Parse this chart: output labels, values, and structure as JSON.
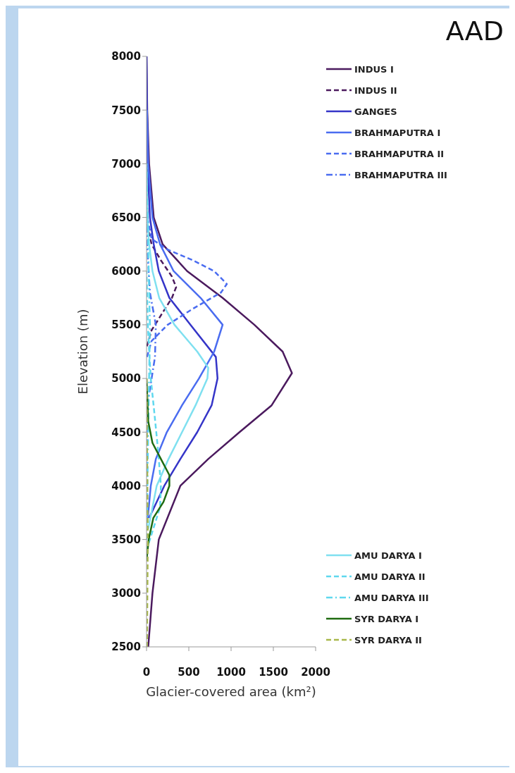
{
  "chart_data": {
    "type": "line",
    "title": "AAD",
    "xlabel": "Glacier-covered area (km²)",
    "ylabel": "Elevation (m)",
    "xlim": [
      0,
      2000
    ],
    "xticks": [
      0,
      500,
      1000,
      1500,
      2000
    ],
    "ylim": [
      2500,
      8000
    ],
    "yticks": [
      2500,
      3000,
      3500,
      4000,
      4500,
      5000,
      5500,
      6000,
      6500,
      7000,
      7500,
      8000
    ],
    "grid": false,
    "legend": "right",
    "marker": "none",
    "series": [
      {
        "name": "INDUS I",
        "color": "#4b1a5e",
        "line_style": "solid",
        "x": [
          20,
          70,
          145,
          400,
          730,
          1100,
          1480,
          1720,
          1610,
          1275,
          900,
          480,
          190,
          85,
          30,
          8,
          0
        ],
        "values": [
          2500,
          3000,
          3500,
          4000,
          4250,
          4500,
          4750,
          5050,
          5250,
          5500,
          5750,
          6000,
          6250,
          6500,
          7000,
          7500,
          8000
        ]
      },
      {
        "name": "INDUS II",
        "color": "#4b1a5e",
        "line_style": "dashed",
        "x": [
          5,
          60,
          180,
          300,
          350,
          300,
          170,
          60,
          15,
          0
        ],
        "values": [
          5300,
          5450,
          5600,
          5750,
          5850,
          5950,
          6100,
          6250,
          6400,
          6800
        ]
      },
      {
        "name": "GANGES",
        "color": "#3535c8",
        "line_style": "solid",
        "x": [
          30,
          210,
          400,
          600,
          770,
          840,
          820,
          520,
          270,
          145,
          85,
          40,
          12,
          0
        ],
        "values": [
          3700,
          4000,
          4250,
          4500,
          4750,
          5000,
          5200,
          5500,
          5750,
          6000,
          6250,
          6500,
          7000,
          8000
        ]
      },
      {
        "name": "BRAHMAPUTRA I",
        "color": "#4a6cf0",
        "line_style": "solid",
        "x": [
          15,
          50,
          110,
          240,
          420,
          620,
          800,
          900,
          640,
          320,
          160,
          70,
          20,
          5
        ],
        "values": [
          3700,
          4000,
          4250,
          4500,
          4750,
          5000,
          5250,
          5500,
          5750,
          6000,
          6250,
          6500,
          7000,
          7500
        ]
      },
      {
        "name": "BRAHMAPUTRA II",
        "color": "#4a6cf0",
        "line_style": "dashed",
        "x": [
          5,
          60,
          250,
          550,
          880,
          950,
          800,
          550,
          250,
          60,
          10,
          0
        ],
        "values": [
          5200,
          5350,
          5500,
          5650,
          5800,
          5880,
          6000,
          6100,
          6200,
          6300,
          6500,
          7000
        ]
      },
      {
        "name": "BRAHMAPUTRA III",
        "color": "#4a6cf0",
        "line_style": "dotted",
        "x": [
          0,
          20,
          100,
          110,
          40,
          10,
          0
        ],
        "values": [
          4000,
          4800,
          5200,
          5500,
          5800,
          6200,
          6600
        ]
      },
      {
        "name": "AMU DARYA I",
        "color": "#7fe0f0",
        "line_style": "solid",
        "x": [
          20,
          120,
          260,
          420,
          580,
          720,
          730,
          600,
          330,
          150,
          70,
          30,
          10,
          0
        ],
        "values": [
          3600,
          4000,
          4250,
          4500,
          4750,
          5000,
          5100,
          5250,
          5500,
          5750,
          6000,
          6250,
          6500,
          7000
        ]
      },
      {
        "name": "AMU DARYA II",
        "color": "#5fd8ee",
        "line_style": "dashed",
        "x": [
          0,
          80,
          160,
          170,
          140,
          90,
          50,
          15,
          0
        ],
        "values": [
          3400,
          3600,
          3800,
          4000,
          4300,
          4700,
          5000,
          5500,
          6000
        ]
      },
      {
        "name": "AMU DARYA III",
        "color": "#5fd8ee",
        "line_style": "dotted",
        "x": [
          0,
          20,
          40,
          20,
          0
        ],
        "values": [
          3500,
          4500,
          5500,
          6200,
          7000
        ]
      },
      {
        "name": "SYR DARYA I",
        "color": "#1f6b10",
        "line_style": "solid",
        "x": [
          0,
          25,
          80,
          200,
          270,
          270,
          170,
          70,
          20,
          0
        ],
        "values": [
          3300,
          3500,
          3700,
          3850,
          4000,
          4100,
          4250,
          4400,
          4600,
          5000
        ]
      },
      {
        "name": "SYR DARYA II",
        "color": "#a8b84a",
        "line_style": "dashed",
        "x": [
          5,
          15,
          10,
          5,
          0
        ],
        "values": [
          2500,
          3500,
          4000,
          4500,
          5000
        ]
      }
    ]
  }
}
